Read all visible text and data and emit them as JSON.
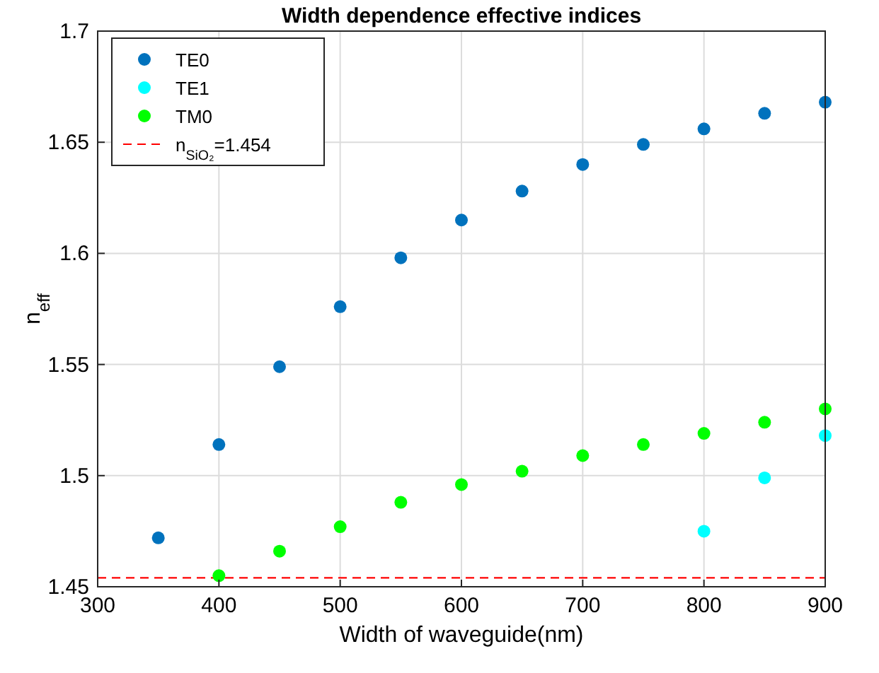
{
  "chart_data": {
    "type": "scatter",
    "title": "Width dependence effective indices",
    "xlabel": "Width of waveguide(nm)",
    "ylabel": "n$_{eff}$",
    "x": [
      350,
      400,
      450,
      500,
      550,
      600,
      650,
      700,
      750,
      800,
      850,
      900
    ],
    "series": [
      {
        "name": "TE0",
        "color": "#0072bd",
        "values": [
          1.472,
          1.514,
          1.549,
          1.576,
          1.598,
          1.615,
          1.628,
          1.64,
          1.649,
          1.656,
          1.663,
          1.668
        ]
      },
      {
        "name": "TE1",
        "color": "#00ffff",
        "values": [
          null,
          null,
          null,
          null,
          null,
          null,
          null,
          null,
          null,
          1.475,
          1.499,
          1.518
        ]
      },
      {
        "name": "TM0",
        "color": "#00ff00",
        "values": [
          null,
          1.455,
          1.466,
          1.477,
          1.488,
          1.496,
          1.502,
          1.509,
          1.514,
          1.519,
          1.524,
          1.53
        ]
      }
    ],
    "ref_lines": [
      {
        "axis": "y",
        "value": 1.454,
        "label": "n$_{SiO₂}$=1.454",
        "color": "#ff0000",
        "line_style": "dashed"
      }
    ],
    "xlim": [
      300,
      900
    ],
    "xticks": [
      300,
      400,
      500,
      600,
      700,
      800,
      900
    ],
    "ylim": [
      1.45,
      1.7
    ],
    "yticks": [
      1.45,
      1.5,
      1.55,
      1.6,
      1.65,
      1.7
    ],
    "grid": true,
    "legend": "top left",
    "marker": "circle"
  }
}
